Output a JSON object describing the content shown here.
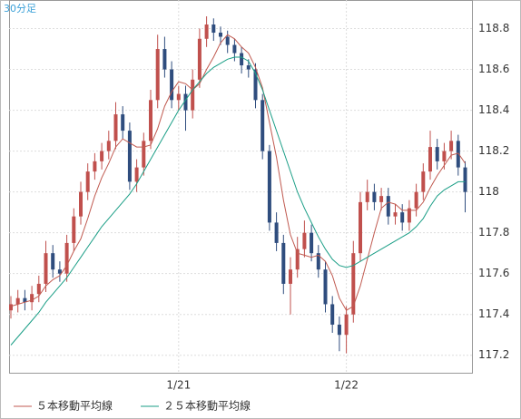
{
  "chart_data": {
    "type": "candlestick",
    "title": "30分足",
    "categories": [
      null,
      null,
      null,
      null,
      null,
      null,
      null,
      null,
      null,
      null,
      null,
      null,
      null,
      null,
      null,
      null,
      null,
      null,
      null,
      null,
      null,
      null,
      null,
      null,
      "1/21",
      null,
      null,
      null,
      null,
      null,
      null,
      null,
      null,
      null,
      null,
      null,
      null,
      null,
      null,
      null,
      null,
      null,
      null,
      null,
      null,
      null,
      null,
      null,
      "1/22",
      null,
      null,
      null,
      null,
      null,
      null,
      null,
      null,
      null,
      null,
      null,
      null,
      null,
      null,
      null,
      null,
      null
    ],
    "open": [
      117.42,
      117.45,
      117.48,
      117.46,
      117.5,
      117.55,
      117.7,
      117.62,
      117.6,
      117.75,
      117.88,
      118.0,
      118.1,
      118.15,
      118.2,
      118.25,
      118.38,
      118.3,
      118.05,
      118.12,
      118.25,
      118.45,
      118.7,
      118.6,
      118.45,
      118.48,
      118.4,
      118.55,
      118.75,
      118.82,
      118.78,
      118.76,
      118.72,
      118.68,
      118.62,
      118.6,
      118.45,
      118.2,
      117.85,
      117.75,
      117.55,
      117.62,
      117.72,
      117.8,
      117.7,
      117.62,
      117.45,
      117.35,
      117.3,
      117.4,
      117.7,
      117.95,
      118.0,
      117.95,
      117.98,
      117.88,
      117.9,
      117.85,
      117.92,
      118.0,
      118.1,
      118.22,
      118.15,
      118.2,
      118.25,
      118.12
    ],
    "high": [
      117.49,
      117.52,
      117.52,
      117.54,
      117.59,
      117.76,
      117.74,
      117.66,
      117.79,
      117.92,
      118.05,
      118.14,
      118.19,
      118.24,
      118.3,
      118.44,
      118.42,
      118.34,
      118.16,
      118.29,
      118.5,
      118.77,
      118.76,
      118.64,
      118.52,
      118.52,
      118.6,
      118.8,
      118.86,
      118.85,
      118.81,
      118.79,
      118.75,
      118.71,
      118.65,
      118.63,
      118.48,
      118.23,
      117.9,
      117.79,
      117.68,
      117.78,
      117.86,
      117.84,
      117.74,
      117.66,
      117.49,
      117.39,
      117.44,
      117.76,
      118.0,
      118.06,
      118.04,
      118.02,
      118.02,
      117.94,
      117.94,
      117.96,
      118.04,
      118.14,
      118.3,
      118.26,
      118.24,
      118.3,
      118.28,
      118.15
    ],
    "low": [
      117.38,
      117.41,
      117.42,
      117.42,
      117.46,
      117.51,
      117.58,
      117.56,
      117.56,
      117.71,
      117.84,
      117.96,
      118.06,
      118.11,
      118.16,
      118.21,
      118.26,
      118.01,
      118.0,
      118.08,
      118.21,
      118.41,
      118.56,
      118.41,
      118.4,
      118.3,
      118.36,
      118.51,
      118.71,
      118.74,
      118.72,
      118.68,
      118.64,
      118.58,
      118.56,
      118.41,
      118.16,
      117.81,
      117.71,
      117.5,
      117.4,
      117.58,
      117.68,
      117.66,
      117.58,
      117.41,
      117.31,
      117.22,
      117.21,
      117.36,
      117.66,
      117.91,
      117.91,
      117.91,
      117.84,
      117.84,
      117.81,
      117.81,
      117.88,
      117.96,
      118.06,
      118.11,
      118.11,
      118.16,
      118.08,
      117.9
    ],
    "close": [
      117.45,
      117.48,
      117.46,
      117.5,
      117.55,
      117.7,
      117.62,
      117.6,
      117.75,
      117.88,
      118.0,
      118.1,
      118.15,
      118.2,
      118.25,
      118.38,
      118.3,
      118.05,
      118.12,
      118.25,
      118.45,
      118.7,
      118.6,
      118.45,
      118.48,
      118.4,
      118.55,
      118.75,
      118.82,
      118.78,
      118.76,
      118.72,
      118.68,
      118.62,
      118.6,
      118.45,
      118.2,
      117.85,
      117.75,
      117.55,
      117.62,
      117.72,
      117.8,
      117.7,
      117.62,
      117.45,
      117.35,
      117.3,
      117.4,
      117.7,
      117.95,
      118.0,
      117.95,
      117.98,
      117.88,
      117.9,
      117.85,
      117.92,
      118.0,
      118.1,
      118.22,
      118.15,
      118.2,
      118.25,
      118.12,
      118.0
    ],
    "up_color": "#c0504d",
    "down_color": "#2f4d7e",
    "series": [
      {
        "name": "５本移動平均線",
        "color": "#c05a50",
        "values": [
          117.44,
          117.45,
          117.46,
          117.47,
          117.49,
          117.54,
          117.57,
          117.59,
          117.64,
          117.71,
          117.77,
          117.87,
          117.98,
          118.07,
          118.14,
          118.22,
          118.26,
          118.24,
          118.22,
          118.22,
          118.23,
          118.31,
          118.42,
          118.49,
          118.54,
          118.53,
          118.5,
          118.53,
          118.6,
          118.66,
          118.73,
          118.77,
          118.75,
          118.71,
          118.68,
          118.61,
          118.51,
          118.34,
          118.17,
          117.96,
          117.79,
          117.7,
          117.69,
          117.68,
          117.69,
          117.66,
          117.59,
          117.48,
          117.42,
          117.44,
          117.54,
          117.67,
          117.8,
          117.92,
          117.95,
          117.94,
          117.91,
          117.91,
          117.91,
          117.95,
          118.02,
          118.08,
          118.13,
          118.18,
          118.19,
          118.14
        ]
      },
      {
        "name": "２５本移動平均線",
        "color": "#1a9e86",
        "values": [
          117.25,
          117.29,
          117.33,
          117.37,
          117.41,
          117.46,
          117.5,
          117.54,
          117.58,
          117.63,
          117.68,
          117.73,
          117.78,
          117.83,
          117.87,
          117.91,
          117.95,
          117.99,
          118.04,
          118.1,
          118.16,
          118.22,
          118.28,
          118.34,
          118.4,
          118.45,
          118.5,
          118.54,
          118.58,
          118.61,
          118.63,
          118.65,
          118.66,
          118.66,
          118.64,
          118.58,
          118.5,
          118.4,
          118.3,
          118.2,
          118.1,
          118.0,
          117.92,
          117.85,
          117.78,
          117.72,
          117.67,
          117.64,
          117.63,
          117.64,
          117.66,
          117.68,
          117.7,
          117.72,
          117.74,
          117.76,
          117.78,
          117.8,
          117.83,
          117.87,
          117.93,
          117.98,
          118.01,
          118.03,
          118.05,
          118.05
        ]
      }
    ],
    "ylim": [
      117.11,
      118.94
    ],
    "yticks": [
      117.2,
      117.4,
      117.6,
      117.8,
      118,
      118.2,
      118.4,
      118.6,
      118.8
    ],
    "grid": true
  }
}
